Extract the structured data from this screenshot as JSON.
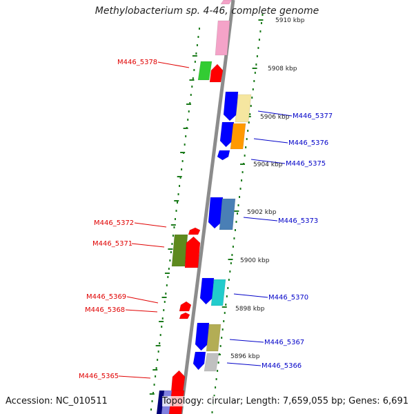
{
  "title": "Methylobacterium sp. 4-46, complete genome",
  "footer": {
    "accession": "Accession: NC_010511",
    "summary": "Topology: circular; Length: 7,659,055 bp; Genes: 6,691"
  },
  "colors": {
    "backbone": "#8c8c8c",
    "tick": "#1a7a1a",
    "label_left": "#e00000",
    "label_right": "#0000c8"
  },
  "scale_labels": [
    "5910 kbp",
    "5908 kbp",
    "5906 kbp",
    "5904 kbp",
    "5902 kbp",
    "5900 kbp",
    "5898 kbp",
    "5896 kbp"
  ],
  "gene_labels": {
    "left": [
      "M446_5378",
      "M446_5372",
      "M446_5371",
      "M446_5369",
      "M446_5368",
      "M446_5365"
    ],
    "right": [
      "M446_5377",
      "M446_5376",
      "M446_5375",
      "M446_5373",
      "M446_5370",
      "M446_5367",
      "M446_5366"
    ]
  },
  "genes": [
    {
      "color": "#f4a3c8"
    },
    {
      "color": "#f4a3c8"
    },
    {
      "color": "#33cc33"
    },
    {
      "color": "#ff0000"
    },
    {
      "color": "#0000ff"
    },
    {
      "color": "#f5e6a0"
    },
    {
      "color": "#0000ff"
    },
    {
      "color": "#ff9900"
    },
    {
      "color": "#0000ff"
    },
    {
      "color": "#0000ff"
    },
    {
      "color": "#4a7fb5"
    },
    {
      "color": "#ff0000"
    },
    {
      "color": "#5e8a1e"
    },
    {
      "color": "#ff0000"
    },
    {
      "color": "#0000ff"
    },
    {
      "color": "#22cccc"
    },
    {
      "color": "#ff0000"
    },
    {
      "color": "#ff0000"
    },
    {
      "color": "#0000ff"
    },
    {
      "color": "#b3ad55"
    },
    {
      "color": "#0000ff"
    },
    {
      "color": "#c0c0c0"
    },
    {
      "color": "#ff0000"
    },
    {
      "color": "#00007a"
    },
    {
      "color": "#8080e0"
    },
    {
      "color": "#ff0000"
    }
  ]
}
